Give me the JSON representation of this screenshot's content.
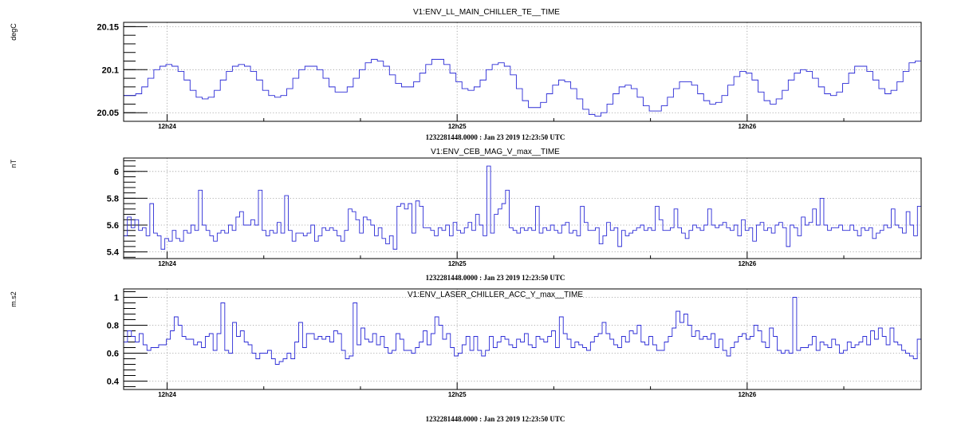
{
  "chart_data": [
    {
      "type": "line",
      "title": "V1:ENV_LL_MAIN_CHILLER_TE__TIME",
      "ylabel": "degC",
      "footer": "1232281448.0000 : Jan 23 2019 12:23:50 UTC",
      "x_tick_labels": [
        "12h24",
        "12h25",
        "12h26"
      ],
      "x_tick_minutes": [
        24,
        25,
        26
      ],
      "xlim_minutes": [
        23.85,
        26.6
      ],
      "y_tick_labels": [
        "20.05",
        "20.1",
        "20.15"
      ],
      "y_ticks": [
        20.05,
        20.1,
        20.15
      ],
      "ylim": [
        20.04,
        20.155
      ],
      "grid": true,
      "step": true,
      "values": [
        20.07,
        20.07,
        20.072,
        20.08,
        20.09,
        20.1,
        20.104,
        20.106,
        20.104,
        20.098,
        20.088,
        20.076,
        20.068,
        20.066,
        20.068,
        20.076,
        20.088,
        20.098,
        20.104,
        20.106,
        20.104,
        20.098,
        20.088,
        20.076,
        20.07,
        20.068,
        20.07,
        20.078,
        20.09,
        20.1,
        20.104,
        20.104,
        20.1,
        20.09,
        20.08,
        20.074,
        20.074,
        20.08,
        20.09,
        20.1,
        20.108,
        20.112,
        20.11,
        20.104,
        20.094,
        20.084,
        20.08,
        20.08,
        20.086,
        20.096,
        20.106,
        20.112,
        20.112,
        20.106,
        20.096,
        20.086,
        20.078,
        20.076,
        20.08,
        20.088,
        20.1,
        20.106,
        20.108,
        20.104,
        20.094,
        20.078,
        20.064,
        20.056,
        20.056,
        20.062,
        20.072,
        20.082,
        20.088,
        20.086,
        20.078,
        20.066,
        20.054,
        20.048,
        20.046,
        20.05,
        20.06,
        20.072,
        20.08,
        20.082,
        20.078,
        20.068,
        20.058,
        20.052,
        20.052,
        20.058,
        20.068,
        20.078,
        20.086,
        20.086,
        20.082,
        20.072,
        20.064,
        20.06,
        20.062,
        20.07,
        20.082,
        20.092,
        20.098,
        20.096,
        20.088,
        20.074,
        20.064,
        20.06,
        20.066,
        20.076,
        20.088,
        20.096,
        20.1,
        20.098,
        20.09,
        20.08,
        20.072,
        20.07,
        20.074,
        20.084,
        20.096,
        20.104,
        20.104,
        20.098,
        20.088,
        20.078,
        20.072,
        20.076,
        20.086,
        20.098,
        20.108,
        20.11
      ]
    },
    {
      "type": "line",
      "title": "V1:ENV_CEB_MAG_V_max__TIME",
      "ylabel": "nT",
      "footer": "1232281448.0000 : Jan 23 2019 12:23:50 UTC",
      "x_tick_labels": [
        "12h24",
        "12h25",
        "12h26"
      ],
      "x_tick_minutes": [
        24,
        25,
        26
      ],
      "xlim_minutes": [
        23.85,
        26.6
      ],
      "y_tick_labels": [
        "5.4",
        "5.6",
        "5.8",
        "6"
      ],
      "y_ticks": [
        5.4,
        5.6,
        5.8,
        6.0
      ],
      "ylim": [
        5.35,
        6.1
      ],
      "grid": true,
      "step": true,
      "values": [
        5.52,
        5.66,
        5.58,
        5.64,
        5.56,
        5.58,
        5.52,
        5.76,
        5.54,
        5.52,
        5.42,
        5.5,
        5.48,
        5.56,
        5.5,
        5.48,
        5.56,
        5.54,
        5.6,
        5.56,
        5.86,
        5.6,
        5.56,
        5.52,
        5.48,
        5.54,
        5.56,
        5.54,
        5.6,
        5.56,
        5.66,
        5.7,
        5.6,
        5.6,
        5.64,
        5.6,
        5.86,
        5.56,
        5.52,
        5.56,
        5.54,
        5.62,
        5.54,
        5.82,
        5.56,
        5.48,
        5.54,
        5.54,
        5.52,
        5.54,
        5.6,
        5.48,
        5.52,
        5.58,
        5.56,
        5.58,
        5.56,
        5.52,
        5.48,
        5.56,
        5.72,
        5.7,
        5.64,
        5.54,
        5.66,
        5.64,
        5.6,
        5.52,
        5.58,
        5.5,
        5.46,
        5.52,
        5.42,
        5.74,
        5.76,
        5.72,
        5.76,
        5.54,
        5.78,
        5.74,
        5.58,
        5.58,
        5.56,
        5.52,
        5.58,
        5.56,
        5.6,
        5.52,
        5.62,
        5.56,
        5.54,
        5.58,
        5.62,
        5.56,
        5.68,
        5.6,
        5.52,
        6.04,
        5.54,
        5.68,
        5.72,
        5.76,
        5.86,
        5.58,
        5.56,
        5.54,
        5.58,
        5.56,
        5.58,
        5.56,
        5.74,
        5.54,
        5.58,
        5.56,
        5.6,
        5.56,
        5.54,
        5.6,
        5.62,
        5.54,
        5.56,
        5.52,
        5.74,
        5.62,
        5.56,
        5.56,
        5.58,
        5.46,
        5.52,
        5.62,
        5.56,
        5.58,
        5.44,
        5.56,
        5.52,
        5.54,
        5.56,
        5.58,
        5.6,
        5.56,
        5.58,
        5.56,
        5.74,
        5.64,
        5.56,
        5.56,
        5.58,
        5.72,
        5.58,
        5.54,
        5.5,
        5.56,
        5.6,
        5.58,
        5.56,
        5.6,
        5.72,
        5.6,
        5.58,
        5.6,
        5.62,
        5.58,
        5.56,
        5.6,
        5.52,
        5.64,
        5.56,
        5.58,
        5.48,
        5.6,
        5.62,
        5.56,
        5.58,
        5.54,
        5.6,
        5.62,
        5.58,
        5.44,
        5.6,
        5.58,
        5.52,
        5.66,
        5.6,
        5.62,
        5.72,
        5.6,
        5.8,
        5.6,
        5.56,
        5.58,
        5.58,
        5.6,
        5.56,
        5.56,
        5.6,
        5.56,
        5.52,
        5.58,
        5.56,
        5.58,
        5.5,
        5.54,
        5.56,
        5.6,
        5.58,
        5.72,
        5.6,
        5.58,
        5.54,
        5.7,
        5.6,
        5.52,
        5.74
      ]
    },
    {
      "type": "line",
      "title": "V1:ENV_LASER_CHILLER_ACC_Y_max__TIME",
      "ylabel": "m.s2",
      "footer": "1232281448.0000 : Jan 23 2019 12:23:50 UTC",
      "x_tick_labels": [
        "12h24",
        "12h25",
        "12h26"
      ],
      "x_tick_minutes": [
        24,
        25,
        26
      ],
      "xlim_minutes": [
        23.85,
        26.6
      ],
      "y_tick_labels": [
        "0.4",
        "0.6",
        "0.8",
        "1"
      ],
      "y_ticks": [
        0.4,
        0.6,
        0.8,
        1.0
      ],
      "ylim": [
        0.34,
        1.06
      ],
      "grid": true,
      "step": true,
      "values": [
        0.68,
        0.76,
        0.72,
        0.68,
        0.74,
        0.66,
        0.62,
        0.64,
        0.64,
        0.66,
        0.66,
        0.7,
        0.76,
        0.86,
        0.8,
        0.72,
        0.7,
        0.7,
        0.66,
        0.68,
        0.64,
        0.72,
        0.74,
        0.62,
        0.74,
        0.96,
        0.62,
        0.6,
        0.82,
        0.72,
        0.76,
        0.68,
        0.66,
        0.6,
        0.56,
        0.6,
        0.6,
        0.62,
        0.56,
        0.52,
        0.54,
        0.56,
        0.6,
        0.56,
        0.68,
        0.82,
        0.64,
        0.74,
        0.74,
        0.7,
        0.72,
        0.7,
        0.72,
        0.68,
        0.76,
        0.74,
        0.62,
        0.56,
        0.58,
        0.96,
        0.66,
        0.78,
        0.7,
        0.68,
        0.74,
        0.66,
        0.72,
        0.64,
        0.6,
        0.62,
        0.74,
        0.7,
        0.62,
        0.62,
        0.6,
        0.64,
        0.68,
        0.76,
        0.66,
        0.74,
        0.86,
        0.8,
        0.7,
        0.74,
        0.64,
        0.58,
        0.6,
        0.66,
        0.72,
        0.62,
        0.72,
        0.62,
        0.58,
        0.62,
        0.72,
        0.64,
        0.68,
        0.72,
        0.7,
        0.66,
        0.64,
        0.7,
        0.68,
        0.74,
        0.66,
        0.64,
        0.72,
        0.7,
        0.68,
        0.72,
        0.76,
        0.64,
        0.86,
        0.74,
        0.7,
        0.64,
        0.68,
        0.66,
        0.64,
        0.62,
        0.68,
        0.72,
        0.74,
        0.82,
        0.74,
        0.7,
        0.66,
        0.64,
        0.72,
        0.68,
        0.76,
        0.74,
        0.8,
        0.68,
        0.66,
        0.72,
        0.66,
        0.62,
        0.62,
        0.68,
        0.72,
        0.78,
        0.9,
        0.82,
        0.88,
        0.8,
        0.72,
        0.76,
        0.7,
        0.72,
        0.7,
        0.74,
        0.64,
        0.7,
        0.62,
        0.58,
        0.64,
        0.68,
        0.72,
        0.74,
        0.7,
        0.72,
        0.8,
        0.76,
        0.68,
        0.64,
        0.78,
        0.72,
        0.62,
        0.6,
        0.62,
        0.6,
        1.0,
        0.62,
        0.64,
        0.64,
        0.66,
        0.72,
        0.62,
        0.68,
        0.66,
        0.64,
        0.7,
        0.66,
        0.6,
        0.62,
        0.68,
        0.64,
        0.66,
        0.68,
        0.72,
        0.66,
        0.76,
        0.7,
        0.78,
        0.72,
        0.66,
        0.78,
        0.68,
        0.66,
        0.62,
        0.6,
        0.58,
        0.56,
        0.7
      ]
    }
  ]
}
